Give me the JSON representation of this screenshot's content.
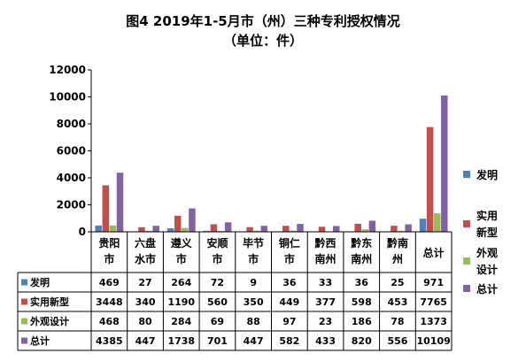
{
  "chart_data": {
    "type": "bar",
    "title": "图4  2019年1-5月市（州）三种专利授权情况",
    "subtitle": "（单位：件）",
    "ylim": [
      0,
      12000
    ],
    "yticks": [
      "0",
      "2000",
      "4000",
      "6000",
      "8000",
      "10000",
      "12000"
    ],
    "categories": [
      [
        "贵阳",
        "市"
      ],
      [
        "六盘",
        "水市"
      ],
      [
        "遵义",
        "市"
      ],
      [
        "安顺",
        "市"
      ],
      [
        "毕节",
        "市"
      ],
      [
        "铜仁",
        "市"
      ],
      [
        "黔西",
        "南州"
      ],
      [
        "黔东",
        "南州"
      ],
      [
        "黔南",
        "州"
      ],
      [
        "总计"
      ]
    ],
    "series": [
      {
        "name": "发明",
        "color": "#4f81bd",
        "values": [
          469,
          27,
          264,
          72,
          9,
          36,
          33,
          36,
          25,
          971
        ]
      },
      {
        "name": "实用新型",
        "color": "#c0504d",
        "values": [
          3448,
          340,
          1190,
          560,
          350,
          449,
          377,
          598,
          453,
          7765
        ]
      },
      {
        "name": "外观设计",
        "color": "#9bbb59",
        "values": [
          468,
          80,
          284,
          69,
          88,
          97,
          23,
          186,
          78,
          1373
        ]
      },
      {
        "name": "总计",
        "color": "#8064a2",
        "values": [
          4385,
          447,
          1738,
          701,
          447,
          582,
          433,
          820,
          556,
          10109
        ]
      }
    ],
    "legend": [
      [
        "发明"
      ],
      [
        "实用",
        "新型"
      ],
      [
        "外观",
        "设计"
      ],
      [
        "总计"
      ]
    ],
    "legend_position": "right",
    "grid": false,
    "data_table": true
  }
}
